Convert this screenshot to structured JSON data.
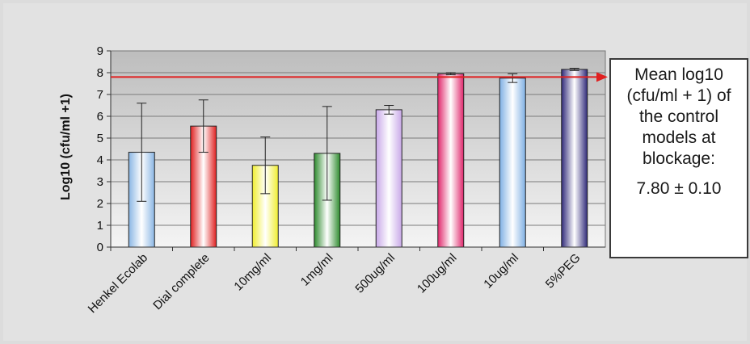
{
  "chart_data": {
    "type": "bar",
    "ylabel": "Log10 (cfu/ml +1)",
    "ylim": [
      0,
      9
    ],
    "yticks": [
      0,
      1,
      2,
      3,
      4,
      5,
      6,
      7,
      8,
      9
    ],
    "grid": true,
    "categories": [
      "Henkel Ecolab",
      "Dial complete",
      "10mg/ml",
      "1mg/ml",
      "500ug/ml",
      "100ug/ml",
      "10ug/ml",
      "5%PEG"
    ],
    "values": [
      4.35,
      5.55,
      3.75,
      4.3,
      6.3,
      7.95,
      7.75,
      8.15
    ],
    "errors": [
      2.25,
      1.2,
      1.3,
      2.15,
      0.2,
      0.05,
      0.2,
      0.05
    ],
    "colors": [
      "#8ab6e4",
      "#e02020",
      "#f0ee30",
      "#2e8b2e",
      "#c8a8e8",
      "#e0286c",
      "#7fb0e4",
      "#302a7a"
    ],
    "reference_line": {
      "value": 7.8,
      "color": "#e02020"
    }
  },
  "callout": {
    "text": "Mean log10 (cfu/ml + 1) of the control models at blockage:",
    "value": "7.80 ± 0.10"
  }
}
